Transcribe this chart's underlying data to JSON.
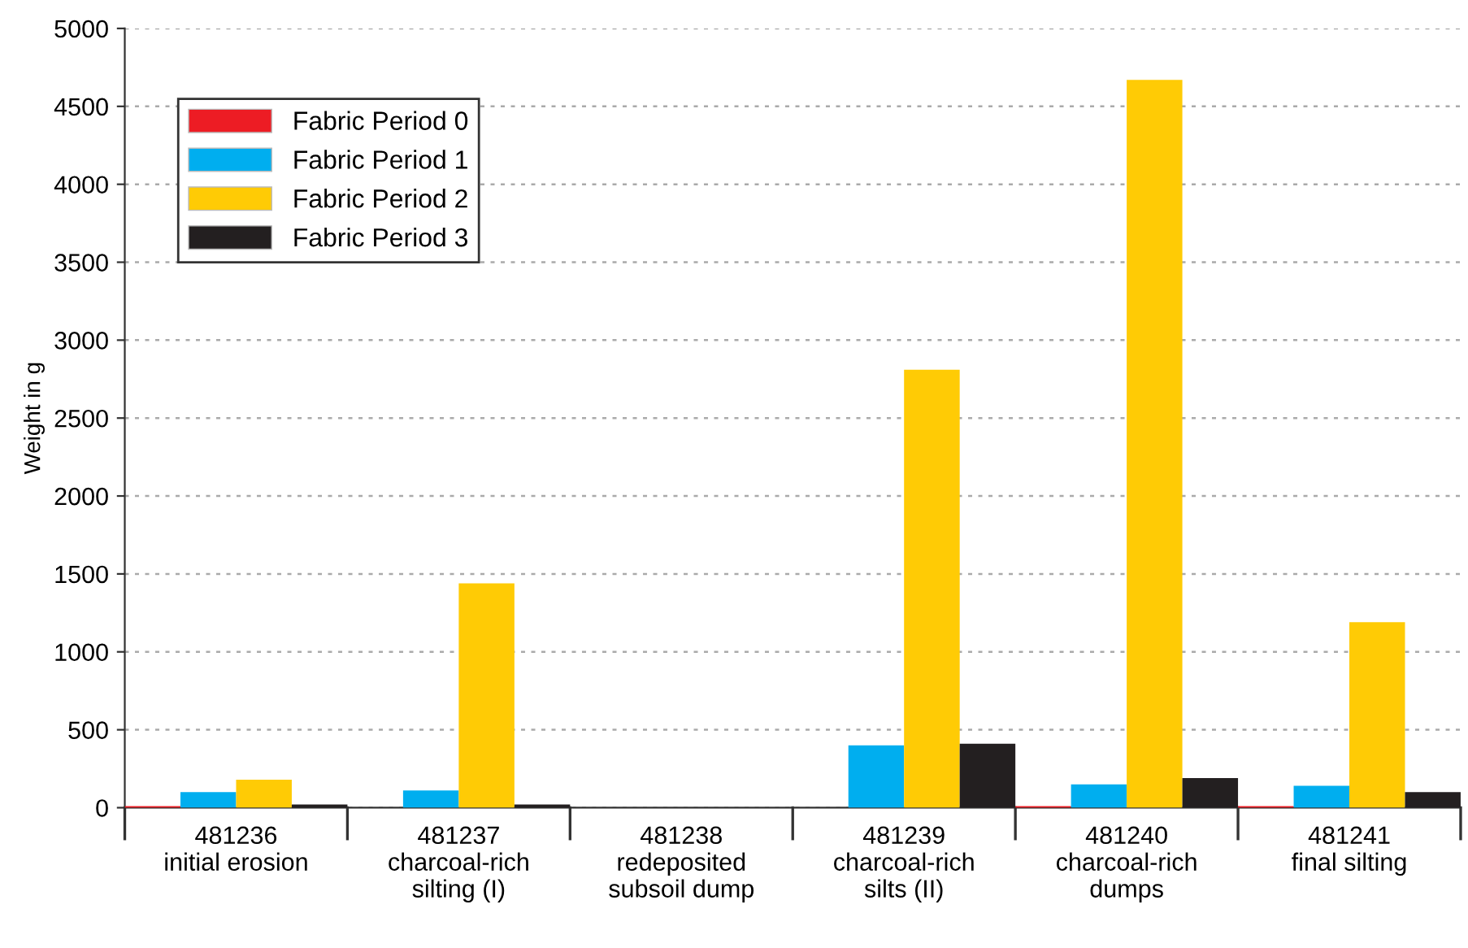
{
  "chart_data": {
    "type": "bar",
    "ylabel": "Weight in g",
    "categories": [
      "481236\ninitial erosion",
      "481237\ncharcoal-rich\nsilting (I)",
      "481238\nredeposited\nsubsoil dump",
      "481239\ncharcoal-rich\nsilts (II)",
      "481240\ncharcoal-rich\ndumps",
      "481241\nfinal silting"
    ],
    "series": [
      {
        "name": "Fabric Period 0",
        "color": "#ed1c24",
        "values": [
          10,
          0,
          0,
          0,
          10,
          10
        ]
      },
      {
        "name": "Fabric Period 1",
        "color": "#00aeef",
        "values": [
          100,
          110,
          0,
          400,
          150,
          140
        ]
      },
      {
        "name": "Fabric Period 2",
        "color": "#ffcb05",
        "values": [
          180,
          1440,
          0,
          2810,
          4670,
          1190
        ]
      },
      {
        "name": "Fabric Period 3",
        "color": "#231f20",
        "values": [
          20,
          20,
          0,
          410,
          190,
          100
        ]
      }
    ],
    "ylim": [
      0,
      5000
    ],
    "yticks": [
      0,
      500,
      1000,
      1500,
      2000,
      2500,
      3000,
      3500,
      4000,
      4500,
      5000
    ],
    "grid": "y",
    "legend": "top left"
  }
}
